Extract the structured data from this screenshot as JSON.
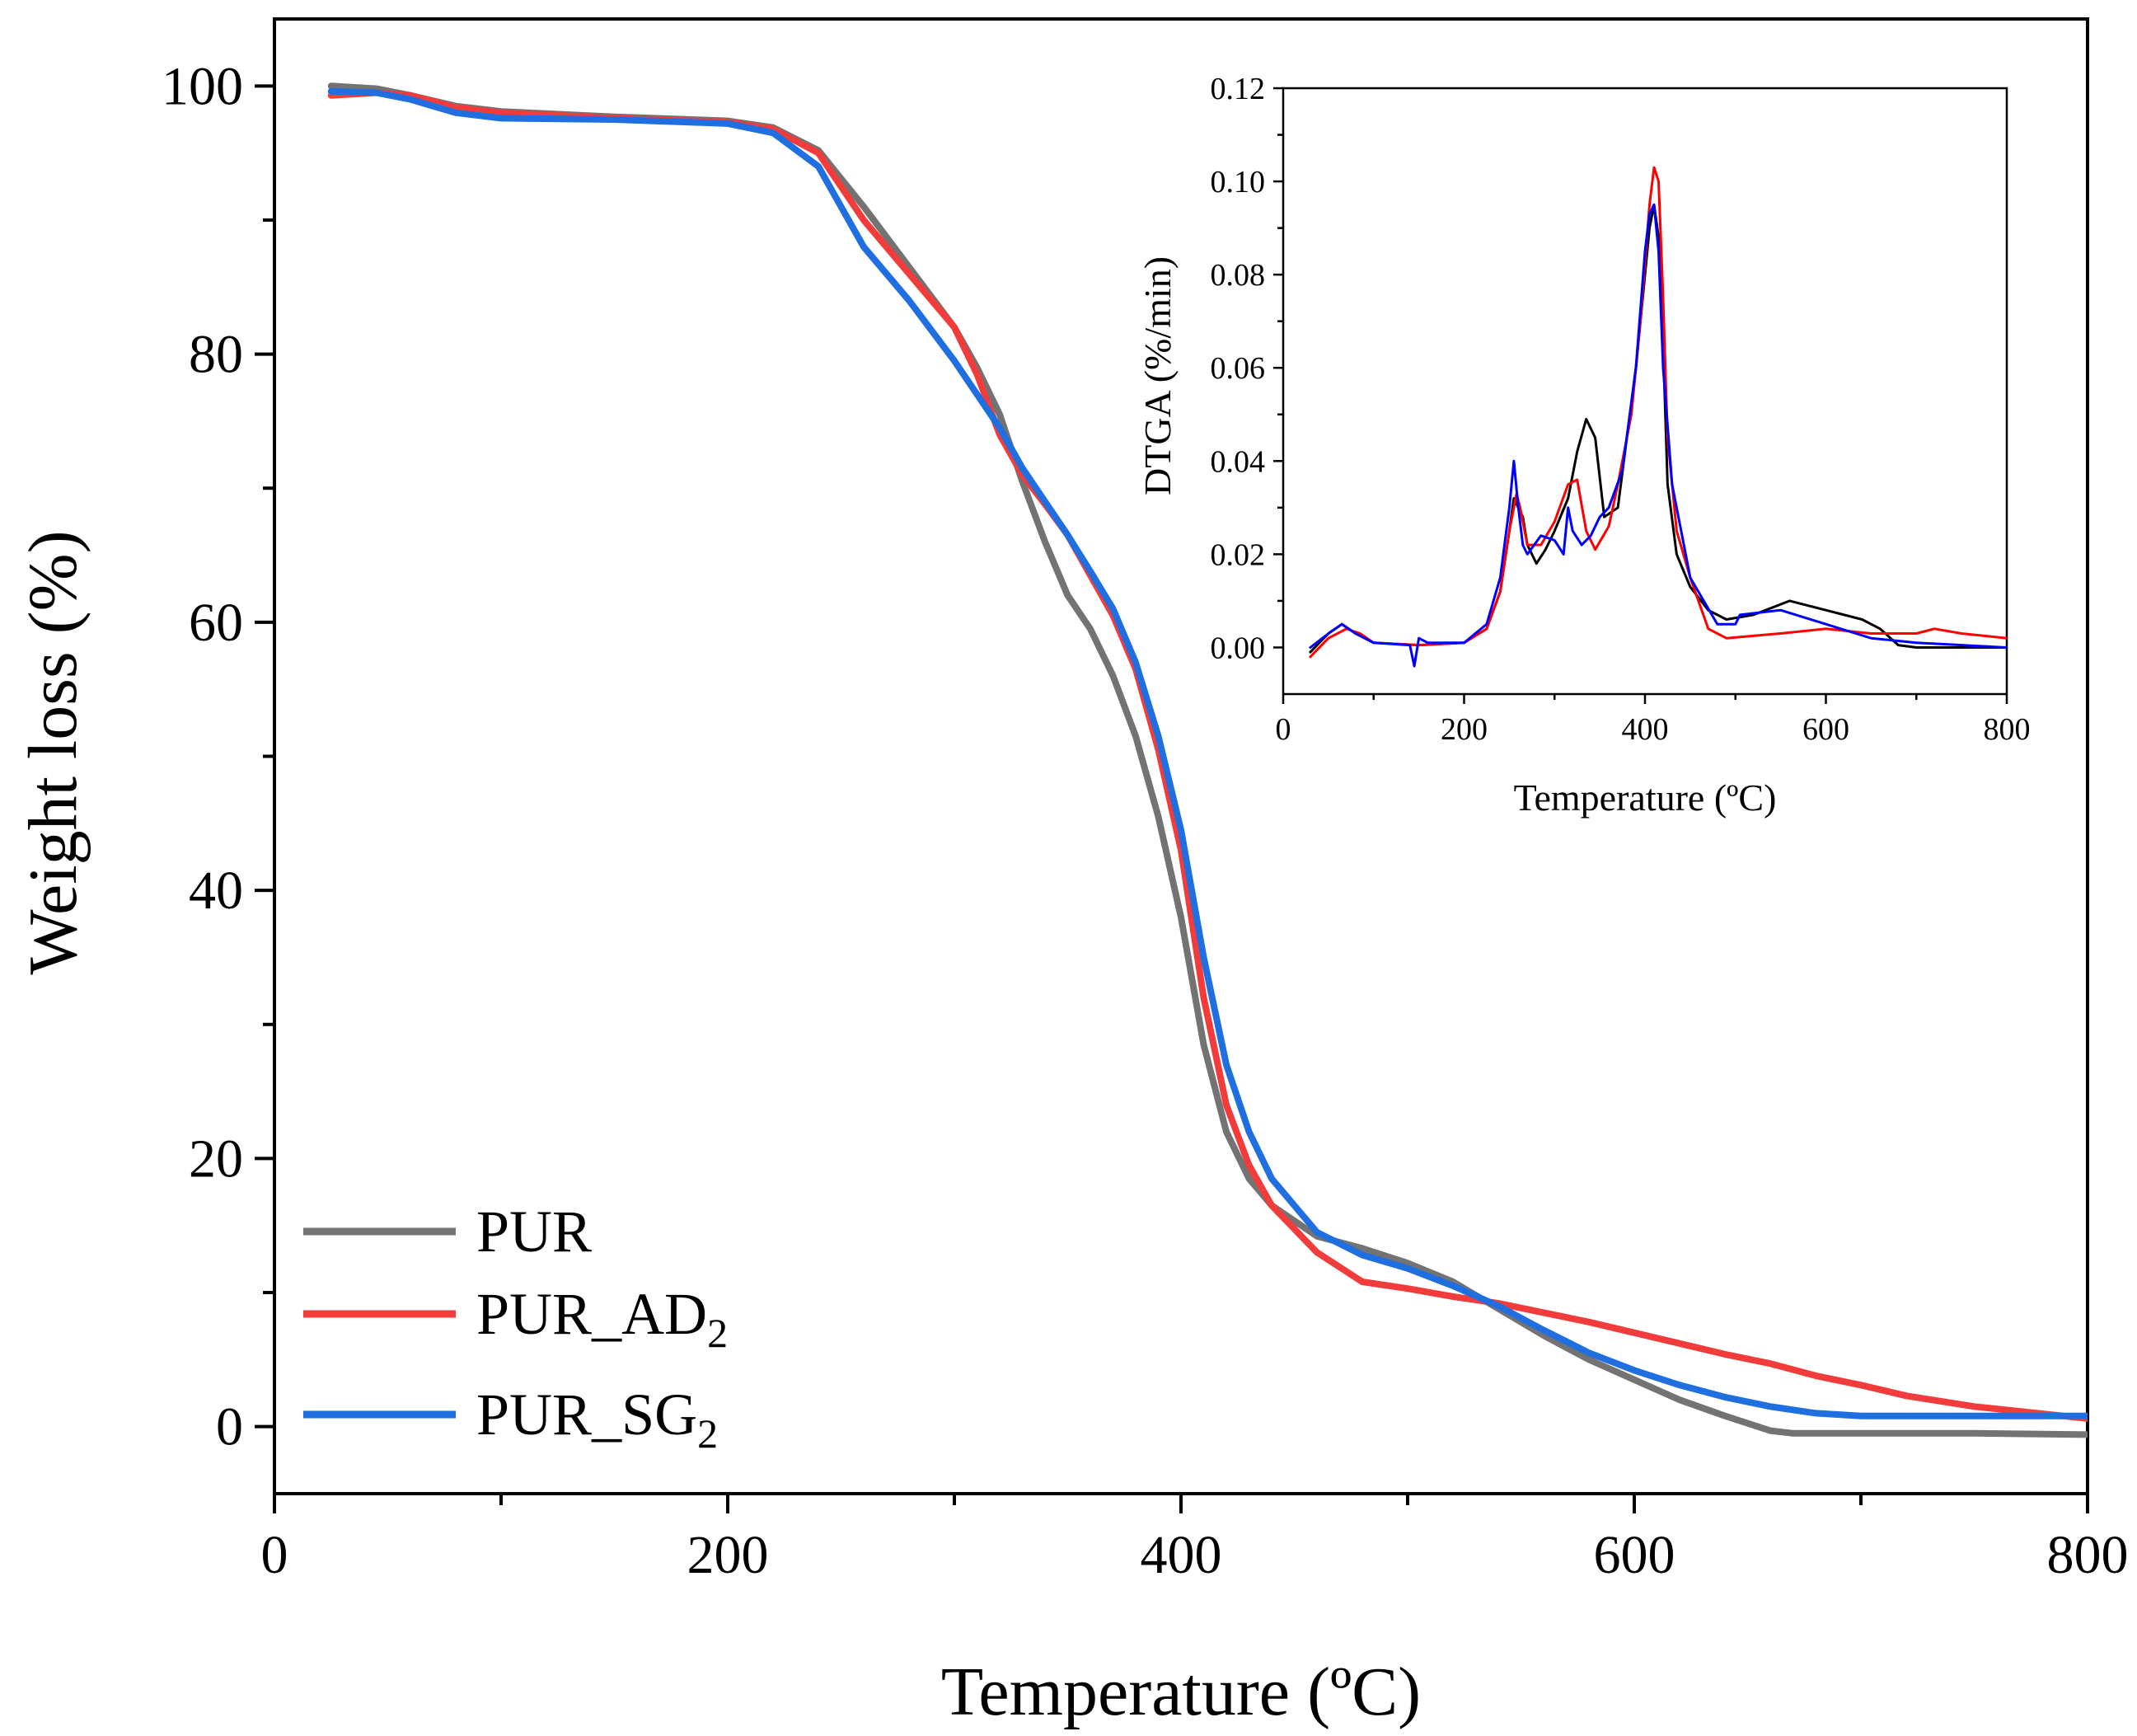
{
  "chart_data": [
    {
      "type": "line",
      "title": "",
      "xlabel": "Temperature (ºC)",
      "ylabel": "Weight loss (%)",
      "xlim": [
        0,
        800
      ],
      "ylim": [
        -5,
        105
      ],
      "xticks": [
        0,
        200,
        400,
        600,
        800
      ],
      "yticks": [
        0,
        20,
        40,
        60,
        80,
        100
      ],
      "grid": false,
      "legend_position": "bottom-left",
      "series": [
        {
          "name": "PUR",
          "legend": {
            "base": "PUR",
            "subscript": ""
          },
          "color": "#737373",
          "x": [
            25,
            45,
            60,
            80,
            100,
            150,
            200,
            220,
            240,
            260,
            280,
            300,
            310,
            320,
            330,
            340,
            350,
            360,
            370,
            380,
            390,
            400,
            410,
            420,
            430,
            440,
            460,
            480,
            500,
            520,
            540,
            560,
            580,
            600,
            620,
            640,
            660,
            670,
            680,
            700,
            750,
            800
          ],
          "y": [
            100,
            99.8,
            99.3,
            98.5,
            98.1,
            97.7,
            97.4,
            96.9,
            95.2,
            91.0,
            86.5,
            82.0,
            79.0,
            75.5,
            70.5,
            66.0,
            62.0,
            59.5,
            56.0,
            51.5,
            45.5,
            38.0,
            28.5,
            22.0,
            18.5,
            16.5,
            14.2,
            13.3,
            12.2,
            10.8,
            8.8,
            6.8,
            5.0,
            3.5,
            2.0,
            0.8,
            -0.3,
            -0.5,
            -0.5,
            -0.5,
            -0.5,
            -0.6
          ]
        },
        {
          "name": "PUR_AD2",
          "legend": {
            "base": "PUR_AD",
            "subscript": "2"
          },
          "color": "#f23c3c",
          "x": [
            25,
            45,
            60,
            80,
            100,
            150,
            200,
            220,
            240,
            260,
            280,
            300,
            310,
            320,
            330,
            340,
            350,
            360,
            370,
            380,
            390,
            400,
            410,
            420,
            430,
            440,
            460,
            480,
            500,
            520,
            540,
            560,
            580,
            600,
            620,
            640,
            660,
            680,
            700,
            720,
            750,
            800
          ],
          "y": [
            99.3,
            99.5,
            99.3,
            98.4,
            98.0,
            97.6,
            97.3,
            96.8,
            95.0,
            90.0,
            86.0,
            82.0,
            78.5,
            74.0,
            71.0,
            68.8,
            66.5,
            63.5,
            60.5,
            56.5,
            50.5,
            43.0,
            32.0,
            24.0,
            19.5,
            16.5,
            13.0,
            10.8,
            10.3,
            9.7,
            9.2,
            8.5,
            7.8,
            7.0,
            6.2,
            5.4,
            4.7,
            3.8,
            3.1,
            2.3,
            1.5,
            0.6
          ]
        },
        {
          "name": "PUR_SG2",
          "legend": {
            "base": "PUR_SG",
            "subscript": "2"
          },
          "color": "#1f6fe0",
          "x": [
            25,
            45,
            60,
            80,
            100,
            150,
            200,
            220,
            240,
            260,
            280,
            300,
            310,
            320,
            330,
            340,
            350,
            360,
            370,
            380,
            390,
            400,
            410,
            420,
            430,
            440,
            460,
            480,
            500,
            520,
            540,
            560,
            580,
            600,
            620,
            640,
            660,
            680,
            700,
            720,
            750,
            800
          ],
          "y": [
            99.6,
            99.5,
            99.0,
            98.0,
            97.6,
            97.5,
            97.2,
            96.5,
            94.0,
            88.0,
            84.0,
            79.5,
            77.0,
            74.5,
            71.5,
            69.0,
            66.5,
            63.8,
            61.0,
            57.0,
            51.5,
            44.5,
            35.0,
            27.0,
            22.0,
            18.5,
            14.5,
            12.8,
            11.8,
            10.5,
            9.0,
            7.2,
            5.5,
            4.2,
            3.1,
            2.2,
            1.5,
            1.0,
            0.8,
            0.8,
            0.8,
            0.8
          ]
        }
      ]
    },
    {
      "type": "line",
      "title": "",
      "xlabel": "Temperature (ºC)",
      "ylabel": "DTGA (%/min)",
      "xlim": [
        0,
        800
      ],
      "ylim": [
        -0.01,
        0.12
      ],
      "xticks": [
        0,
        200,
        400,
        600,
        800
      ],
      "yticks": [
        "0.00",
        "0.02",
        "0.04",
        "0.06",
        "0.08",
        "0.10",
        "0.12"
      ],
      "grid": false,
      "placement": "inset top-right",
      "series": [
        {
          "name": "PUR",
          "color": "#000000",
          "x": [
            30,
            50,
            65,
            80,
            100,
            150,
            200,
            225,
            240,
            250,
            255,
            260,
            265,
            270,
            280,
            290,
            300,
            315,
            325,
            335,
            345,
            355,
            370,
            380,
            390,
            400,
            405,
            410,
            415,
            420,
            425,
            435,
            450,
            470,
            490,
            520,
            560,
            600,
            640,
            660,
            680,
            700,
            750,
            800
          ],
          "y": [
            -0.001,
            0.003,
            0.005,
            0.003,
            0.001,
            0.0005,
            0.001,
            0.004,
            0.012,
            0.025,
            0.032,
            0.03,
            0.028,
            0.022,
            0.018,
            0.021,
            0.025,
            0.032,
            0.042,
            0.049,
            0.045,
            0.028,
            0.03,
            0.045,
            0.06,
            0.08,
            0.09,
            0.095,
            0.088,
            0.065,
            0.035,
            0.02,
            0.013,
            0.008,
            0.006,
            0.007,
            0.01,
            0.008,
            0.006,
            0.004,
            0.0005,
            0.0,
            0.0,
            0.0
          ]
        },
        {
          "name": "PUR_AD2",
          "color": "#ff0000",
          "x": [
            30,
            50,
            70,
            85,
            100,
            150,
            200,
            225,
            240,
            250,
            258,
            262,
            270,
            285,
            300,
            315,
            325,
            335,
            345,
            360,
            370,
            385,
            395,
            405,
            410,
            415,
            420,
            425,
            435,
            450,
            470,
            490,
            550,
            600,
            650,
            700,
            720,
            750,
            800
          ],
          "y": [
            -0.002,
            0.002,
            0.004,
            0.003,
            0.001,
            0.0005,
            0.001,
            0.004,
            0.012,
            0.025,
            0.033,
            0.03,
            0.022,
            0.022,
            0.027,
            0.035,
            0.036,
            0.025,
            0.021,
            0.026,
            0.035,
            0.05,
            0.07,
            0.095,
            0.103,
            0.1,
            0.075,
            0.045,
            0.025,
            0.015,
            0.004,
            0.002,
            0.003,
            0.004,
            0.003,
            0.003,
            0.004,
            0.003,
            0.002
          ]
        },
        {
          "name": "PUR_SG2",
          "color": "#0000ff",
          "x": [
            30,
            50,
            65,
            80,
            100,
            140,
            145,
            150,
            160,
            200,
            225,
            240,
            250,
            255,
            260,
            265,
            270,
            285,
            300,
            310,
            315,
            320,
            330,
            340,
            350,
            360,
            375,
            390,
            400,
            405,
            410,
            415,
            420,
            430,
            450,
            480,
            500,
            505,
            550,
            600,
            650,
            700,
            800
          ],
          "y": [
            0.0,
            0.003,
            0.005,
            0.003,
            0.001,
            0.0005,
            -0.004,
            0.002,
            0.001,
            0.001,
            0.005,
            0.015,
            0.03,
            0.04,
            0.03,
            0.022,
            0.02,
            0.024,
            0.023,
            0.02,
            0.03,
            0.025,
            0.022,
            0.024,
            0.028,
            0.03,
            0.038,
            0.06,
            0.085,
            0.093,
            0.095,
            0.085,
            0.06,
            0.035,
            0.015,
            0.005,
            0.005,
            0.007,
            0.008,
            0.005,
            0.002,
            0.001,
            0.0
          ]
        }
      ]
    }
  ]
}
